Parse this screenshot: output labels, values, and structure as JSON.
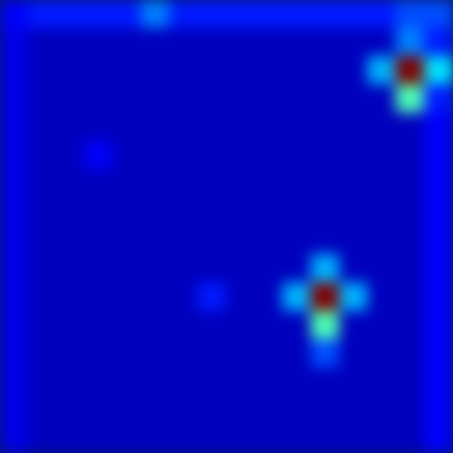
{
  "chart_data": {
    "type": "heatmap",
    "tick_labels": false,
    "cells": [
      [
        0.12,
        0.15,
        0.15,
        0.15,
        0.15,
        0.25,
        0.15,
        0.15,
        0.15,
        0.15,
        0.15,
        0.15,
        0.15,
        0.15,
        0.2,
        0.2
      ],
      [
        0.1,
        0.06,
        0.06,
        0.06,
        0.06,
        0.06,
        0.06,
        0.06,
        0.06,
        0.06,
        0.06,
        0.06,
        0.06,
        0.06,
        0.25,
        0.15
      ],
      [
        0.1,
        0.06,
        0.06,
        0.06,
        0.06,
        0.06,
        0.06,
        0.06,
        0.06,
        0.06,
        0.06,
        0.06,
        0.06,
        0.3,
        1.0,
        0.35
      ],
      [
        0.1,
        0.06,
        0.06,
        0.06,
        0.06,
        0.06,
        0.06,
        0.06,
        0.06,
        0.06,
        0.06,
        0.06,
        0.06,
        0.06,
        0.45,
        0.15
      ],
      [
        0.1,
        0.06,
        0.06,
        0.06,
        0.06,
        0.06,
        0.06,
        0.06,
        0.06,
        0.06,
        0.06,
        0.06,
        0.06,
        0.06,
        0.06,
        0.12
      ],
      [
        0.1,
        0.06,
        0.06,
        0.12,
        0.06,
        0.06,
        0.06,
        0.06,
        0.06,
        0.06,
        0.06,
        0.06,
        0.06,
        0.06,
        0.06,
        0.12
      ],
      [
        0.1,
        0.06,
        0.06,
        0.06,
        0.06,
        0.06,
        0.06,
        0.06,
        0.06,
        0.06,
        0.06,
        0.06,
        0.06,
        0.06,
        0.06,
        0.12
      ],
      [
        0.1,
        0.06,
        0.06,
        0.06,
        0.06,
        0.06,
        0.06,
        0.06,
        0.06,
        0.06,
        0.06,
        0.06,
        0.06,
        0.06,
        0.06,
        0.12
      ],
      [
        0.1,
        0.06,
        0.06,
        0.06,
        0.06,
        0.06,
        0.06,
        0.06,
        0.06,
        0.06,
        0.06,
        0.06,
        0.06,
        0.06,
        0.06,
        0.12
      ],
      [
        0.1,
        0.06,
        0.06,
        0.06,
        0.06,
        0.06,
        0.06,
        0.06,
        0.06,
        0.06,
        0.06,
        0.3,
        0.06,
        0.06,
        0.06,
        0.12
      ],
      [
        0.1,
        0.06,
        0.06,
        0.06,
        0.06,
        0.06,
        0.06,
        0.15,
        0.06,
        0.06,
        0.3,
        1.0,
        0.3,
        0.06,
        0.06,
        0.12
      ],
      [
        0.1,
        0.06,
        0.06,
        0.06,
        0.06,
        0.06,
        0.06,
        0.06,
        0.06,
        0.06,
        0.06,
        0.45,
        0.06,
        0.06,
        0.06,
        0.12
      ],
      [
        0.1,
        0.06,
        0.06,
        0.06,
        0.06,
        0.06,
        0.06,
        0.06,
        0.06,
        0.06,
        0.06,
        0.2,
        0.06,
        0.06,
        0.06,
        0.12
      ],
      [
        0.1,
        0.06,
        0.06,
        0.06,
        0.06,
        0.06,
        0.06,
        0.06,
        0.06,
        0.06,
        0.06,
        0.06,
        0.06,
        0.06,
        0.06,
        0.12
      ],
      [
        0.1,
        0.06,
        0.06,
        0.06,
        0.06,
        0.06,
        0.06,
        0.06,
        0.06,
        0.06,
        0.06,
        0.06,
        0.06,
        0.06,
        0.06,
        0.12
      ],
      [
        0.1,
        0.06,
        0.06,
        0.06,
        0.06,
        0.06,
        0.06,
        0.06,
        0.06,
        0.06,
        0.06,
        0.06,
        0.06,
        0.06,
        0.06,
        0.12
      ]
    ]
  }
}
